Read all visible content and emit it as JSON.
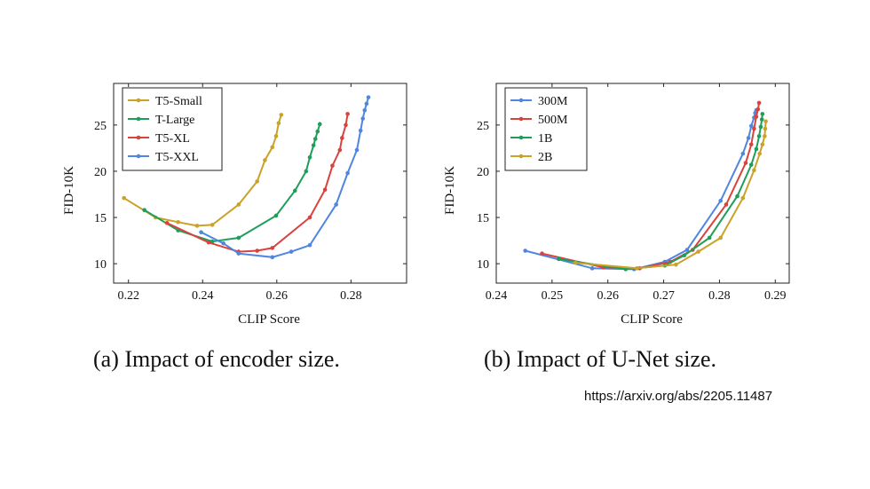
{
  "chart_data": [
    {
      "type": "line",
      "xlabel": "CLIP Score",
      "ylabel": "FID-10K",
      "xlim": [
        0.216,
        0.295
      ],
      "ylim": [
        7.9,
        29.5
      ],
      "xticks": [
        0.22,
        0.24,
        0.26,
        0.28
      ],
      "xtick_labels": [
        "0.22",
        "0.24",
        "0.26",
        "0.28"
      ],
      "yticks": [
        10,
        15,
        20,
        25
      ],
      "ytick_labels": [
        "10",
        "15",
        "20",
        "25"
      ],
      "grid": false,
      "legend_position": "top-left",
      "series": [
        {
          "name": "T5-Small",
          "color": "#c9a227",
          "x": [
            0.2188,
            0.2273,
            0.2334,
            0.2385,
            0.2426,
            0.2497,
            0.2547,
            0.2568,
            0.2588,
            0.2598,
            0.2605,
            0.2612
          ],
          "y": [
            17.1,
            15.0,
            14.5,
            14.1,
            14.2,
            16.4,
            18.9,
            21.2,
            22.6,
            23.8,
            25.2,
            26.1
          ]
        },
        {
          "name": "T-Large",
          "color": "#1f9e5a",
          "x": [
            0.2243,
            0.2334,
            0.2426,
            0.2497,
            0.2598,
            0.2649,
            0.2679,
            0.2689,
            0.2699,
            0.2704,
            0.271,
            0.2716
          ],
          "y": [
            15.8,
            13.6,
            12.4,
            12.8,
            15.2,
            17.9,
            20.0,
            21.5,
            22.8,
            23.5,
            24.3,
            25.1
          ]
        },
        {
          "name": "T5-XL",
          "color": "#d9433e",
          "x": [
            0.2304,
            0.2416,
            0.2497,
            0.2547,
            0.2588,
            0.2689,
            0.273,
            0.275,
            0.277,
            0.2776,
            0.2786,
            0.2791
          ],
          "y": [
            14.4,
            12.3,
            11.3,
            11.4,
            11.7,
            15.0,
            18.0,
            20.6,
            22.3,
            23.6,
            25.0,
            26.2
          ]
        },
        {
          "name": "T5-XXL",
          "color": "#4f86e0",
          "x": [
            0.2396,
            0.2456,
            0.2497,
            0.2588,
            0.2639,
            0.2689,
            0.276,
            0.2791,
            0.2816,
            0.2826,
            0.2832,
            0.2837,
            0.2842,
            0.2847
          ],
          "y": [
            13.4,
            12.2,
            11.1,
            10.7,
            11.3,
            12.0,
            16.4,
            19.8,
            22.3,
            24.4,
            25.7,
            26.6,
            27.3,
            28.0
          ]
        }
      ]
    },
    {
      "type": "line",
      "xlabel": "CLIP Score",
      "ylabel": "FID-10K",
      "xlim": [
        0.24,
        0.2925
      ],
      "ylim": [
        7.9,
        29.5
      ],
      "xticks": [
        0.24,
        0.25,
        0.26,
        0.27,
        0.28,
        0.29
      ],
      "xtick_labels": [
        "0.24",
        "0.25",
        "0.26",
        "0.27",
        "0.28",
        "0.29"
      ],
      "yticks": [
        10,
        15,
        20,
        25
      ],
      "ytick_labels": [
        "10",
        "15",
        "20",
        "25"
      ],
      "grid": false,
      "legend_position": "top-left",
      "series": [
        {
          "name": "300M",
          "color": "#4f86e0",
          "x": [
            0.2452,
            0.2572,
            0.2647,
            0.2702,
            0.2742,
            0.2802,
            0.2842,
            0.2852,
            0.2857,
            0.2862,
            0.2864,
            0.2866
          ],
          "y": [
            11.4,
            9.5,
            9.4,
            10.2,
            11.5,
            16.8,
            21.9,
            23.6,
            24.9,
            25.8,
            26.3,
            26.6
          ]
        },
        {
          "name": "500M",
          "color": "#d9433e",
          "x": [
            0.2482,
            0.2592,
            0.2657,
            0.2712,
            0.2752,
            0.2812,
            0.2847,
            0.2857,
            0.2862,
            0.2866,
            0.2869,
            0.2871
          ],
          "y": [
            11.1,
            9.6,
            9.5,
            10.2,
            11.5,
            16.4,
            20.9,
            22.9,
            24.6,
            25.9,
            26.7,
            27.4
          ]
        },
        {
          "name": "1B",
          "color": "#1f9e5a",
          "x": [
            0.2512,
            0.2632,
            0.2702,
            0.2737,
            0.2782,
            0.2832,
            0.2857,
            0.2866,
            0.2871,
            0.2874,
            0.2876,
            0.2877
          ],
          "y": [
            10.5,
            9.4,
            9.8,
            10.9,
            12.8,
            17.3,
            20.7,
            22.4,
            23.8,
            24.8,
            25.6,
            26.2
          ]
        },
        {
          "name": "2B",
          "color": "#c9a227",
          "x": [
            0.2542,
            0.2652,
            0.2722,
            0.2762,
            0.2802,
            0.2842,
            0.2862,
            0.2872,
            0.2877,
            0.2881,
            0.2882,
            0.2883
          ],
          "y": [
            10.1,
            9.5,
            9.9,
            11.3,
            12.8,
            17.1,
            20.1,
            21.9,
            22.9,
            23.8,
            24.6,
            25.4
          ]
        }
      ]
    }
  ],
  "captions": {
    "a": "(a) Impact of encoder size.",
    "b": "(b) Impact of U-Net size."
  },
  "source_url": "https://arxiv.org/abs/2205.11487"
}
